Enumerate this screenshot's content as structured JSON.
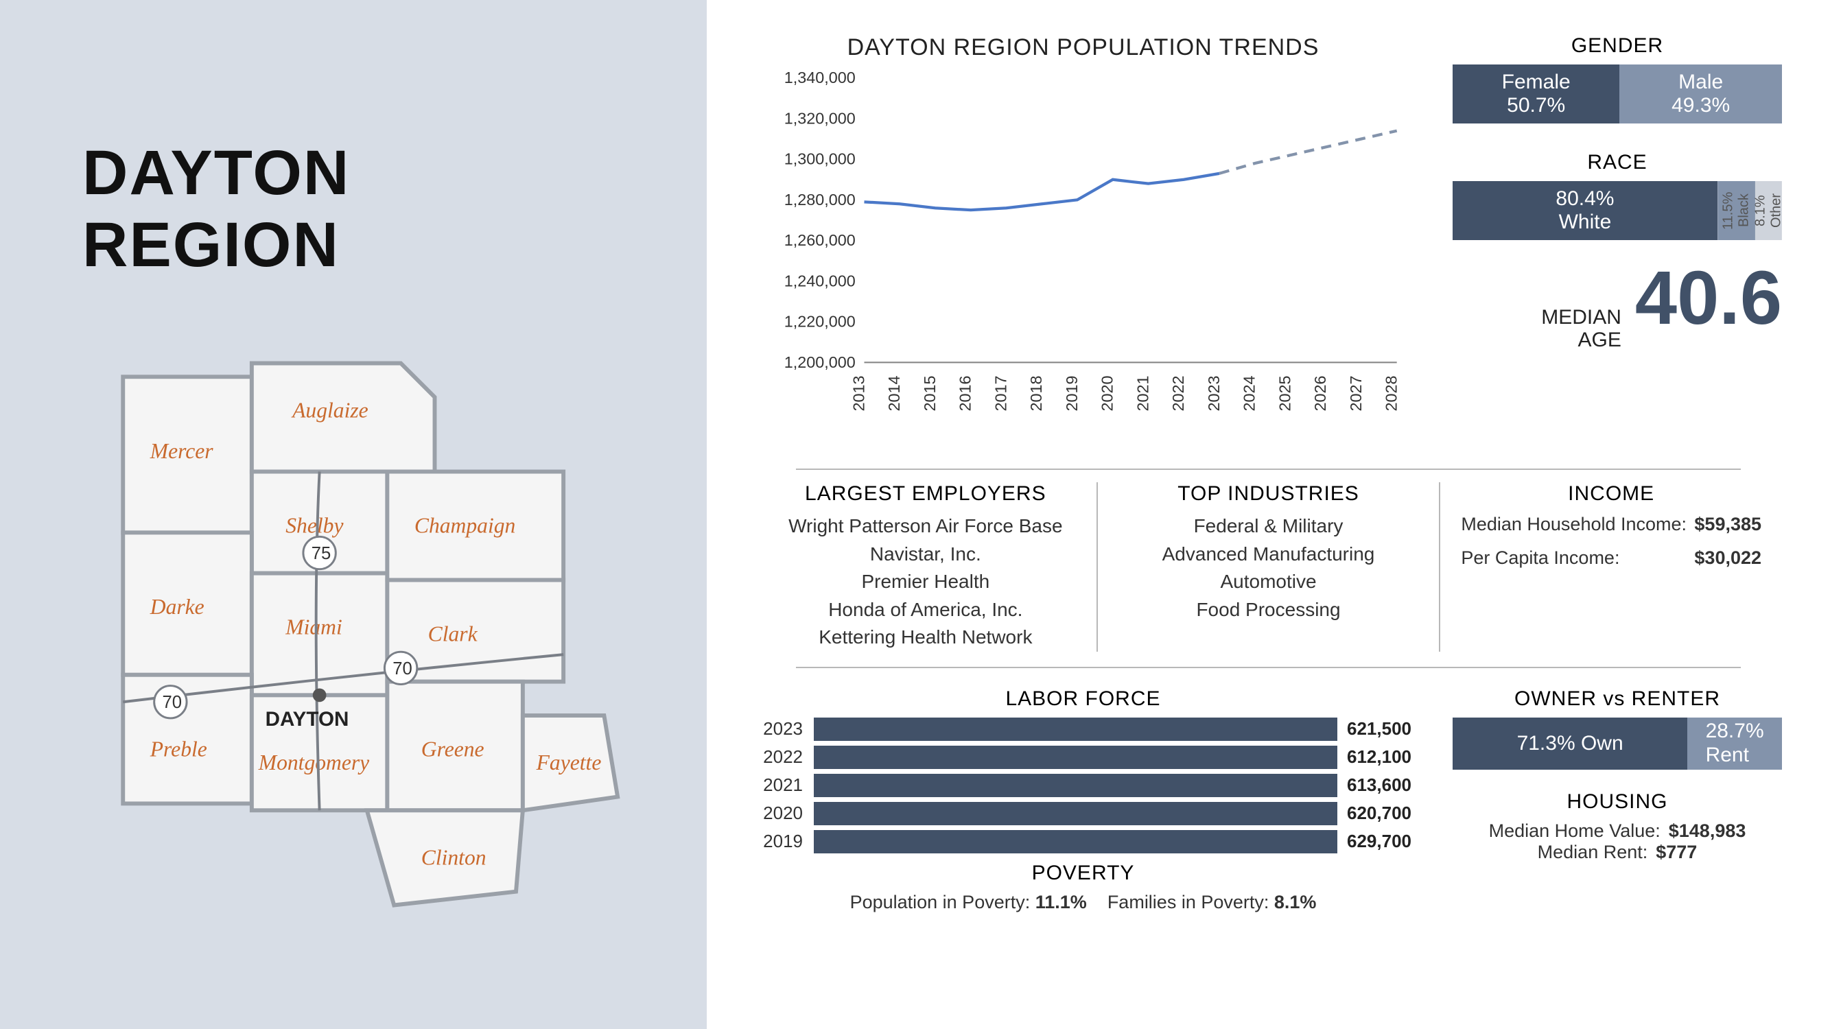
{
  "colors": {
    "left_bg": "#d7dde6",
    "dark": "#415168",
    "medium": "#8393ab",
    "light": "#cfd4dc",
    "chart_line": "#4a78c8",
    "map_fill": "#f5f5f5",
    "map_stroke": "#9aa0a8",
    "county_label": "#c96a2e"
  },
  "title": "DAYTON REGION",
  "map": {
    "city_label": "DAYTON",
    "counties": [
      "Mercer",
      "Auglaize",
      "Shelby",
      "Darke",
      "Miami",
      "Champaign",
      "Clark",
      "Preble",
      "Montgomery",
      "Greene",
      "Fayette",
      "Clinton"
    ],
    "highways": [
      "75",
      "70",
      "70"
    ]
  },
  "population_chart": {
    "title": "DAYTON REGION POPULATION TRENDS",
    "type": "line",
    "years": [
      2013,
      2014,
      2015,
      2016,
      2017,
      2018,
      2019,
      2020,
      2021,
      2022,
      2023,
      2024,
      2025,
      2026,
      2027,
      2028
    ],
    "values": [
      1279000,
      1278000,
      1276000,
      1275000,
      1276000,
      1278000,
      1280000,
      1290000,
      1288000,
      1290000,
      1293000,
      1298000,
      1302000,
      1306000,
      1310000,
      1314000
    ],
    "solid_until_index": 10,
    "ylim": [
      1200000,
      1340000
    ],
    "ytick_step": 20000,
    "ytick_labels": [
      "1,200,000",
      "1,220,000",
      "1,240,000",
      "1,260,000",
      "1,280,000",
      "1,300,000",
      "1,320,000",
      "1,340,000"
    ],
    "line_color": "#4a78c8",
    "line_width": 4,
    "dash_color": "#8393ab",
    "axis_fontsize": 22,
    "title_fontsize": 34
  },
  "gender": {
    "title": "GENDER",
    "segments": [
      {
        "label": "Female",
        "value": "50.7%",
        "width": 50.7,
        "color": "#415168"
      },
      {
        "label": "Male",
        "value": "49.3%",
        "width": 49.3,
        "color": "#8393ab"
      }
    ]
  },
  "race": {
    "title": "RACE",
    "segments": [
      {
        "label": "White",
        "value": "80.4%",
        "width": 80.4,
        "color": "#415168",
        "orient": "h"
      },
      {
        "label": "Black",
        "value": "11.5%",
        "width": 11.5,
        "color": "#8393ab",
        "orient": "v"
      },
      {
        "label": "Other",
        "value": "8.1%",
        "width": 8.1,
        "color": "#cfd4dc",
        "orient": "v"
      }
    ]
  },
  "median_age": {
    "label": "MEDIAN\nAGE",
    "value": "40.6"
  },
  "employers": {
    "title": "LARGEST EMPLOYERS",
    "items": [
      "Wright Patterson Air Force Base",
      "Navistar, Inc.",
      "Premier Health",
      "Honda of America, Inc.",
      "Kettering Health Network"
    ]
  },
  "industries": {
    "title": "TOP INDUSTRIES",
    "items": [
      "Federal & Military",
      "Advanced Manufacturing",
      "Automotive",
      "Food Processing"
    ]
  },
  "income": {
    "title": "INCOME",
    "rows": [
      {
        "label": "Median Household Income:",
        "value": "$59,385"
      },
      {
        "label": "Per Capita Income:",
        "value": "$30,022"
      }
    ]
  },
  "labor_force": {
    "title": "LABOR FORCE",
    "max": 650000,
    "bar_color": "#415168",
    "rows": [
      {
        "year": "2023",
        "value": 621500,
        "label": "621,500"
      },
      {
        "year": "2022",
        "value": 612100,
        "label": "612,100"
      },
      {
        "year": "2021",
        "value": 613600,
        "label": "613,600"
      },
      {
        "year": "2020",
        "value": 620700,
        "label": "620,700"
      },
      {
        "year": "2019",
        "value": 629700,
        "label": "629,700"
      }
    ]
  },
  "owner_renter": {
    "title": "OWNER vs RENTER",
    "segments": [
      {
        "label": "71.3% Own",
        "width": 71.3,
        "color": "#415168"
      },
      {
        "label": "28.7%\nRent",
        "width": 28.7,
        "color": "#8393ab"
      }
    ]
  },
  "housing": {
    "title": "HOUSING",
    "rows": [
      {
        "label": "Median Home Value:",
        "value": "$148,983"
      },
      {
        "label": "Median Rent:",
        "value": "$777"
      }
    ]
  },
  "poverty": {
    "title": "POVERTY",
    "rows": [
      {
        "label": "Population in Poverty:",
        "value": "11.1%"
      },
      {
        "label": "Families in Poverty:",
        "value": "8.1%"
      }
    ]
  }
}
